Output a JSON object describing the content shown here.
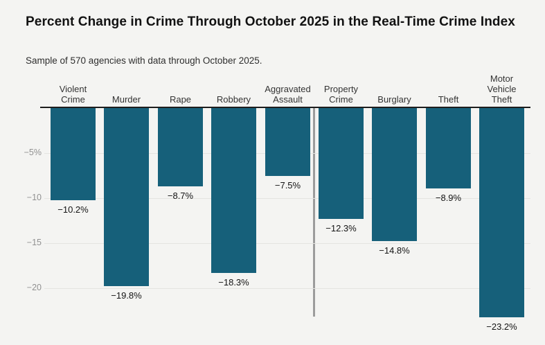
{
  "header": {
    "title": "Percent Change in Crime Through October 2025 in the Real-Time Crime Index",
    "subtitle": "Sample of 570 agencies with data through October 2025."
  },
  "chart_data": {
    "type": "bar",
    "title": "Percent Change in Crime Through October 2025 in the Real-Time Crime Index",
    "subtitle": "Sample of 570 agencies with data through October 2025.",
    "categories": [
      "Violent Crime",
      "Murder",
      "Rape",
      "Robbery",
      "Aggravated Assault",
      "Property Crime",
      "Burglary",
      "Theft",
      "Motor Vehicle Theft"
    ],
    "category_display": [
      "Violent\nCrime",
      "Murder",
      "Rape",
      "Robbery",
      "Aggravated\nAssault",
      "Property\nCrime",
      "Burglary",
      "Theft",
      "Motor\nVehicle\nTheft"
    ],
    "values": [
      -10.2,
      -19.8,
      -8.7,
      -18.3,
      -7.5,
      -12.3,
      -14.8,
      -8.9,
      -23.2
    ],
    "value_labels": [
      "−10.2%",
      "−19.8%",
      "−8.7%",
      "−18.3%",
      "−7.5%",
      "−12.3%",
      "−14.8%",
      "−8.9%",
      "−23.2%"
    ],
    "unit": "percent change",
    "xlabel": "",
    "ylabel": "",
    "y_axis": {
      "range": [
        -25,
        0
      ],
      "grid": true,
      "ticks": [
        {
          "value": -5,
          "label": "−5%"
        },
        {
          "value": -10,
          "label": "−10"
        },
        {
          "value": -15,
          "label": "−15"
        },
        {
          "value": -20,
          "label": "−20"
        }
      ]
    },
    "group_divider": {
      "between": [
        "Aggravated Assault",
        "Property Crime"
      ]
    },
    "legend": "none",
    "colors": {
      "bar": "#16607a",
      "background": "#f4f4f2",
      "gridline": "#e4e4e1",
      "axis_line": "#1d1d1d",
      "divider": "#9c9c9c",
      "tick_label": "#919191",
      "category_label": "#333333",
      "value_label": "#131313"
    }
  }
}
